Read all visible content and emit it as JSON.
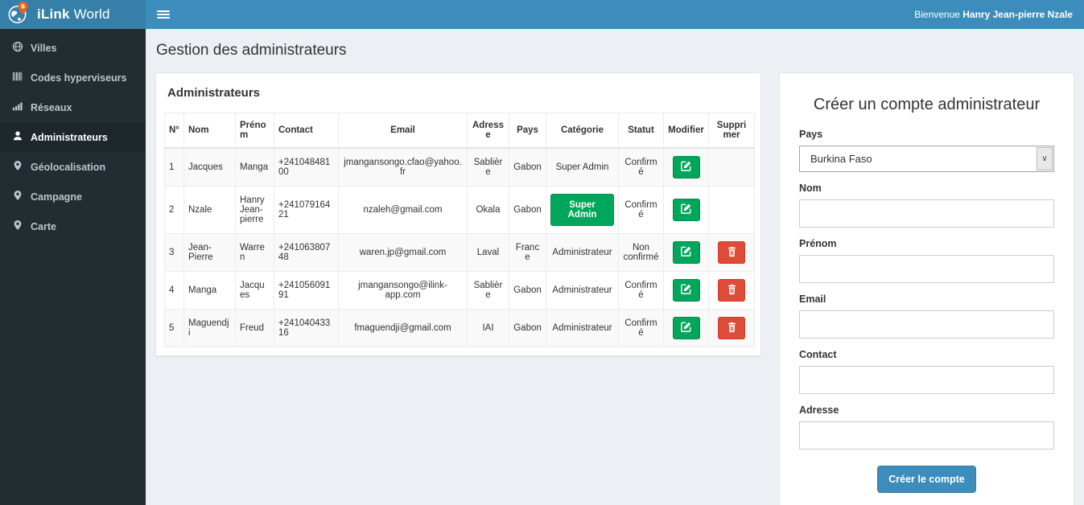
{
  "app": {
    "brand_bold": "iLink",
    "brand_rest": " World",
    "welcome_prefix": "Bienvenue ",
    "welcome_name": "Hanry Jean-pierre Nzale"
  },
  "colors": {
    "accent": "#3c8dbc",
    "success": "#00a65a",
    "danger": "#dd4b39",
    "sidebar": "#222d32"
  },
  "sidebar": {
    "items": [
      {
        "label": "Villes",
        "icon": "globe-icon",
        "active": false
      },
      {
        "label": "Codes hyperviseurs",
        "icon": "barcode-icon",
        "active": false
      },
      {
        "label": "Réseaux",
        "icon": "signal-bars-icon",
        "active": false
      },
      {
        "label": "Administrateurs",
        "icon": "user-icon",
        "active": true
      },
      {
        "label": "Géolocalisation",
        "icon": "map-marker-icon",
        "active": false
      },
      {
        "label": "Campagne",
        "icon": "map-marker-icon",
        "active": false
      },
      {
        "label": "Carte",
        "icon": "map-marker-icon",
        "active": false
      }
    ]
  },
  "page": {
    "title": "Gestion des administrateurs"
  },
  "admin_panel": {
    "title": "Administrateurs",
    "table": {
      "headers": [
        "N°",
        "Nom",
        "Prénom",
        "Contact",
        "Email",
        "Adresse",
        "Pays",
        "Catégorie",
        "Statut",
        "Modifier",
        "Supprimer"
      ],
      "edit_icon": "edit-icon",
      "delete_icon": "trash-icon",
      "rows": [
        {
          "n": "1",
          "nom": "Jacques",
          "prenom": "Manga",
          "contact": "+24104848100",
          "email": "jmangansongo.cfao@yahoo.fr",
          "adresse": "Sablière",
          "pays": "Gabon",
          "categorie": "Super Admin",
          "categorie_style": "text",
          "statut": "Confirmé",
          "can_delete": false
        },
        {
          "n": "2",
          "nom": "Nzale",
          "prenom": "Hanry Jean-pierre",
          "contact": "+24107916421",
          "email": "nzaleh@gmail.com",
          "adresse": "Okala",
          "pays": "Gabon",
          "categorie": "Super Admin",
          "categorie_style": "button",
          "statut": "Confirmé",
          "can_delete": false
        },
        {
          "n": "3",
          "nom": "Jean-Pierre",
          "prenom": "Warren",
          "contact": "+24106380748",
          "email": "waren.jp@gmail.com",
          "adresse": "Laval",
          "pays": "France",
          "categorie": "Administrateur",
          "categorie_style": "text",
          "statut": "Non confirmé",
          "can_delete": true
        },
        {
          "n": "4",
          "nom": "Manga",
          "prenom": "Jacques",
          "contact": "+24105609191",
          "email": "jmangansongo@ilink-app.com",
          "adresse": "Sablière",
          "pays": "Gabon",
          "categorie": "Administrateur",
          "categorie_style": "text",
          "statut": "Confirmé",
          "can_delete": true
        },
        {
          "n": "5",
          "nom": "Maguendji",
          "prenom": "Freud",
          "contact": "+24104043316",
          "email": "fmaguendji@gmail.com",
          "adresse": "IAI",
          "pays": "Gabon",
          "categorie": "Administrateur",
          "categorie_style": "text",
          "statut": "Confirmé",
          "can_delete": true
        }
      ]
    }
  },
  "create_panel": {
    "title": "Créer un compte administrateur",
    "fields": [
      {
        "name": "pays",
        "label": "Pays",
        "type": "select",
        "value": "Burkina Faso"
      },
      {
        "name": "nom",
        "label": "Nom",
        "type": "text",
        "value": "",
        "placeholder": ""
      },
      {
        "name": "prenom",
        "label": "Prénom",
        "type": "text",
        "value": "",
        "placeholder": ""
      },
      {
        "name": "email",
        "label": "Email",
        "type": "text",
        "value": "",
        "placeholder": ""
      },
      {
        "name": "contact",
        "label": "Contact",
        "type": "text",
        "value": "",
        "placeholder": ""
      },
      {
        "name": "adresse",
        "label": "Adresse",
        "type": "text",
        "value": "",
        "placeholder": ""
      }
    ],
    "submit_label": "Créer le compte"
  }
}
